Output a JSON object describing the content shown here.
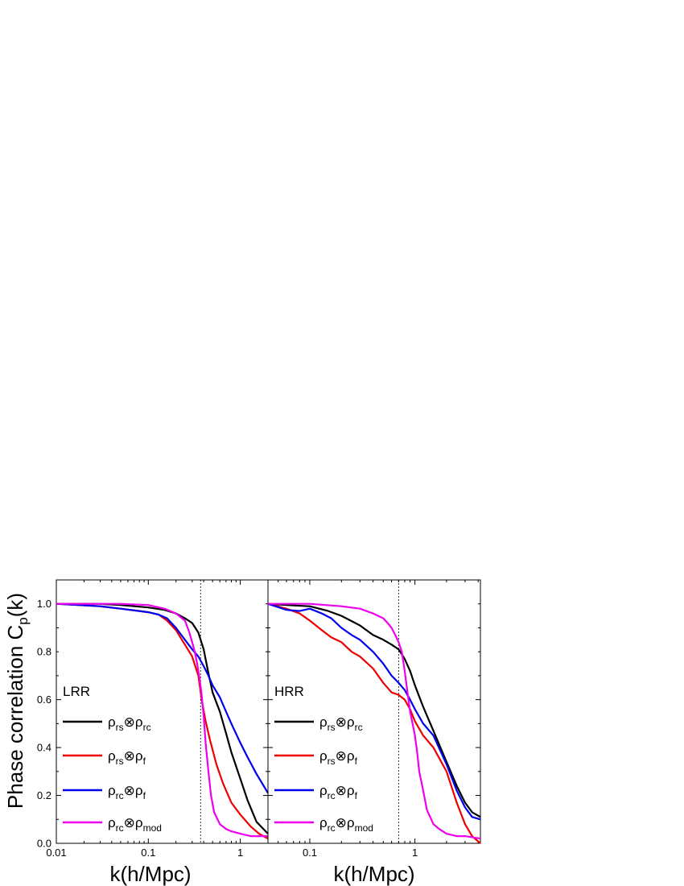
{
  "figure": {
    "ylabel": "Phase correlation C",
    "ylabel_sub": "p",
    "ylabel_suffix": "(k)",
    "xlabel": "k(h/Mpc)"
  },
  "chart_data": [
    {
      "type": "line",
      "panel_label": "LRR",
      "xscale": "log",
      "xlim": [
        0.01,
        2.0
      ],
      "ylim": [
        0.0,
        1.1
      ],
      "xticks": [
        0.01,
        0.1,
        1
      ],
      "xtick_labels": [
        "0.01",
        "0.1",
        "1"
      ],
      "yticks": [
        0.0,
        0.2,
        0.4,
        0.6,
        0.8,
        1.0
      ],
      "ytick_labels": [
        "0.0",
        "0.2",
        "0.4",
        "0.6",
        "0.8",
        "1.0"
      ],
      "vline": 0.37,
      "legend_position": "lower-left",
      "series": [
        {
          "main": "ρ",
          "sub1": "rs",
          "op": "⊗",
          "main2": "ρ",
          "sub2": "rc",
          "color": "#000000",
          "x": [
            0.01,
            0.03,
            0.05,
            0.1,
            0.15,
            0.2,
            0.25,
            0.3,
            0.35,
            0.4,
            0.45,
            0.5,
            0.6,
            0.7,
            0.8,
            1.0,
            1.2,
            1.5,
            2.0
          ],
          "y": [
            1.0,
            1.0,
            0.995,
            0.985,
            0.975,
            0.96,
            0.94,
            0.92,
            0.88,
            0.81,
            0.71,
            0.63,
            0.55,
            0.46,
            0.38,
            0.27,
            0.18,
            0.09,
            0.04
          ]
        },
        {
          "main": "ρ",
          "sub1": "rs",
          "op": "⊗",
          "main2": "ρ",
          "sub2": "f",
          "color": "#ee0000",
          "x": [
            0.01,
            0.03,
            0.05,
            0.08,
            0.1,
            0.13,
            0.16,
            0.2,
            0.25,
            0.3,
            0.35,
            0.38,
            0.42,
            0.47,
            0.55,
            0.65,
            0.8,
            1.0,
            1.3,
            1.6,
            2.0
          ],
          "y": [
            1.0,
            0.99,
            0.98,
            0.97,
            0.965,
            0.955,
            0.93,
            0.89,
            0.83,
            0.78,
            0.7,
            0.6,
            0.51,
            0.43,
            0.33,
            0.25,
            0.17,
            0.12,
            0.07,
            0.04,
            0.02
          ]
        },
        {
          "main": "ρ",
          "sub1": "rc",
          "op": "⊗",
          "main2": "ρ",
          "sub2": "f",
          "color": "#0000ee",
          "x": [
            0.01,
            0.03,
            0.05,
            0.08,
            0.1,
            0.13,
            0.16,
            0.2,
            0.25,
            0.3,
            0.35,
            0.4,
            0.45,
            0.5,
            0.6,
            0.7,
            0.8,
            1.0,
            1.2,
            1.5,
            2.0
          ],
          "y": [
            1.0,
            0.99,
            0.98,
            0.97,
            0.965,
            0.955,
            0.94,
            0.9,
            0.85,
            0.81,
            0.78,
            0.74,
            0.7,
            0.66,
            0.61,
            0.55,
            0.5,
            0.42,
            0.36,
            0.29,
            0.21
          ]
        },
        {
          "main": "ρ",
          "sub1": "rc",
          "op": "⊗",
          "main2": "ρ",
          "sub2": "mod",
          "color": "#ee00ee",
          "x": [
            0.01,
            0.05,
            0.1,
            0.15,
            0.2,
            0.25,
            0.28,
            0.3,
            0.32,
            0.34,
            0.36,
            0.38,
            0.4,
            0.42,
            0.45,
            0.48,
            0.52,
            0.6,
            0.7,
            0.8,
            1.0,
            1.3,
            1.6,
            2.0
          ],
          "y": [
            1.0,
            1.0,
            0.995,
            0.98,
            0.96,
            0.93,
            0.88,
            0.84,
            0.8,
            0.75,
            0.69,
            0.62,
            0.53,
            0.42,
            0.3,
            0.2,
            0.13,
            0.08,
            0.06,
            0.05,
            0.04,
            0.03,
            0.03,
            0.03
          ]
        }
      ]
    },
    {
      "type": "line",
      "panel_label": "HRR",
      "xscale": "log",
      "xlim": [
        0.04,
        4.2
      ],
      "ylim": [
        0.0,
        1.1
      ],
      "xticks": [
        0.1,
        1
      ],
      "xtick_labels": [
        "0.1",
        "1"
      ],
      "yticks": [
        0.0,
        0.2,
        0.4,
        0.6,
        0.8,
        1.0
      ],
      "ytick_labels": [],
      "vline": 0.7,
      "legend_position": "lower-left",
      "series": [
        {
          "main": "ρ",
          "sub1": "rs",
          "op": "⊗",
          "main2": "ρ",
          "sub2": "rc",
          "color": "#000000",
          "x": [
            0.04,
            0.06,
            0.1,
            0.15,
            0.2,
            0.3,
            0.4,
            0.5,
            0.6,
            0.7,
            0.8,
            0.9,
            1.0,
            1.2,
            1.5,
            2.0,
            2.5,
            3.0,
            3.5,
            4.2
          ],
          "y": [
            1.0,
            0.995,
            0.99,
            0.97,
            0.95,
            0.91,
            0.87,
            0.85,
            0.83,
            0.81,
            0.77,
            0.72,
            0.66,
            0.57,
            0.47,
            0.34,
            0.24,
            0.17,
            0.13,
            0.11
          ]
        },
        {
          "main": "ρ",
          "sub1": "rs",
          "op": "⊗",
          "main2": "ρ",
          "sub2": "f",
          "color": "#ee0000",
          "x": [
            0.04,
            0.06,
            0.08,
            0.1,
            0.13,
            0.16,
            0.2,
            0.25,
            0.3,
            0.4,
            0.5,
            0.6,
            0.7,
            0.8,
            0.9,
            1.0,
            1.2,
            1.5,
            2.0,
            2.5,
            3.0,
            3.5,
            4.2
          ],
          "y": [
            1.0,
            0.98,
            0.96,
            0.93,
            0.89,
            0.86,
            0.84,
            0.8,
            0.78,
            0.73,
            0.67,
            0.63,
            0.62,
            0.6,
            0.56,
            0.51,
            0.45,
            0.4,
            0.3,
            0.17,
            0.08,
            0.03,
            0.0
          ]
        },
        {
          "main": "ρ",
          "sub1": "rc",
          "op": "⊗",
          "main2": "ρ",
          "sub2": "f",
          "color": "#0000ee",
          "x": [
            0.04,
            0.06,
            0.08,
            0.1,
            0.13,
            0.16,
            0.2,
            0.25,
            0.3,
            0.4,
            0.5,
            0.6,
            0.7,
            0.8,
            0.9,
            1.0,
            1.2,
            1.5,
            2.0,
            2.5,
            3.0,
            3.5,
            4.2
          ],
          "y": [
            1.0,
            0.975,
            0.97,
            0.98,
            0.96,
            0.94,
            0.9,
            0.87,
            0.85,
            0.8,
            0.75,
            0.7,
            0.67,
            0.64,
            0.6,
            0.56,
            0.5,
            0.45,
            0.33,
            0.22,
            0.15,
            0.11,
            0.1
          ]
        },
        {
          "main": "ρ",
          "sub1": "rc",
          "op": "⊗",
          "main2": "ρ",
          "sub2": "mod",
          "color": "#ee00ee",
          "x": [
            0.04,
            0.1,
            0.2,
            0.3,
            0.4,
            0.5,
            0.55,
            0.6,
            0.65,
            0.7,
            0.75,
            0.8,
            0.85,
            0.9,
            0.95,
            1.0,
            1.05,
            1.1,
            1.2,
            1.3,
            1.5,
            1.7,
            2.0,
            2.5,
            3.0,
            4.2
          ],
          "y": [
            1.0,
            1.0,
            0.99,
            0.98,
            0.96,
            0.94,
            0.92,
            0.9,
            0.87,
            0.84,
            0.8,
            0.72,
            0.63,
            0.55,
            0.5,
            0.45,
            0.38,
            0.3,
            0.22,
            0.14,
            0.08,
            0.06,
            0.04,
            0.03,
            0.03,
            0.02
          ]
        }
      ]
    }
  ]
}
